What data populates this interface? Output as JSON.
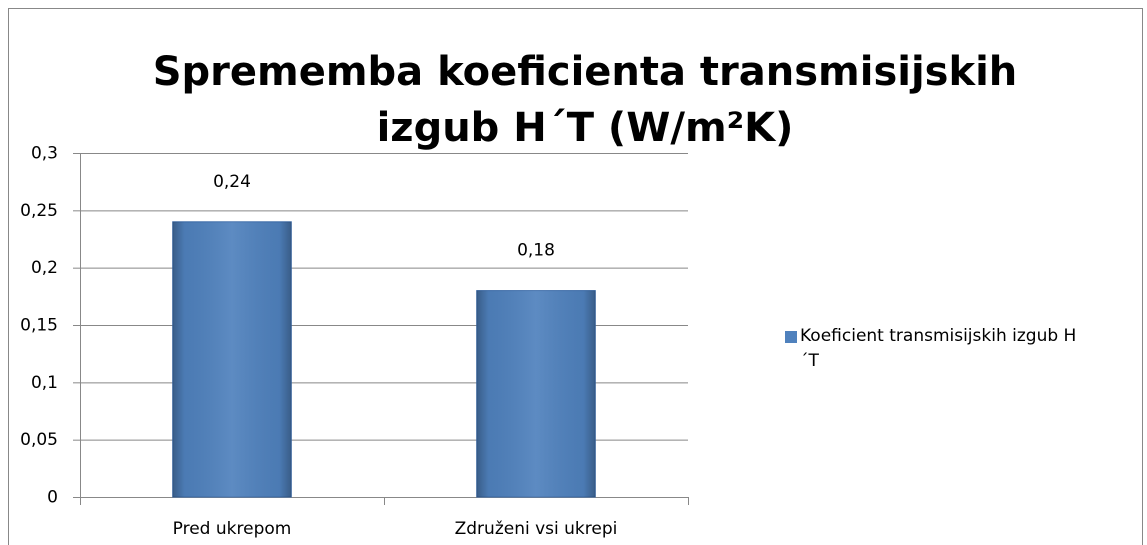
{
  "chart_data": {
    "type": "bar",
    "title": "Sprememba koeficienta transmisijskih izgub H´T (W/m²K)",
    "categories": [
      "Pred ukrepom",
      "Združeni vsi ukrepi"
    ],
    "series": [
      {
        "name": "Koeficient transmisijskih izgub H´T",
        "color": "#4f81bd",
        "values": [
          0.24,
          0.18
        ],
        "value_labels": [
          "0,24",
          "0,18"
        ]
      }
    ],
    "ylim": [
      0,
      0.3
    ],
    "yticks": [
      0,
      {
        "value": 0.05,
        "label": "0,05"
      },
      {
        "value": 0.1,
        "label": "0,1"
      },
      {
        "value": 0.15,
        "label": "0,15"
      },
      {
        "value": 0.2,
        "label": "0,2"
      },
      {
        "value": 0.25,
        "label": "0,25"
      },
      {
        "value": 0.3,
        "label": "0,3"
      }
    ],
    "grid": true,
    "legend": "right"
  }
}
